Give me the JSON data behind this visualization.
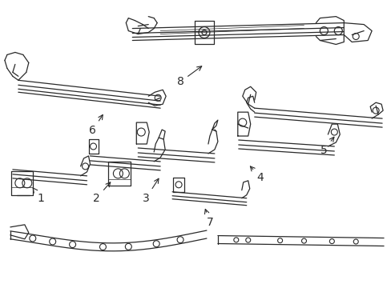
{
  "bg_color": "#ffffff",
  "line_color": "#2a2a2a",
  "lw": 0.9,
  "fig_width": 4.89,
  "fig_height": 3.6,
  "dpi": 100
}
